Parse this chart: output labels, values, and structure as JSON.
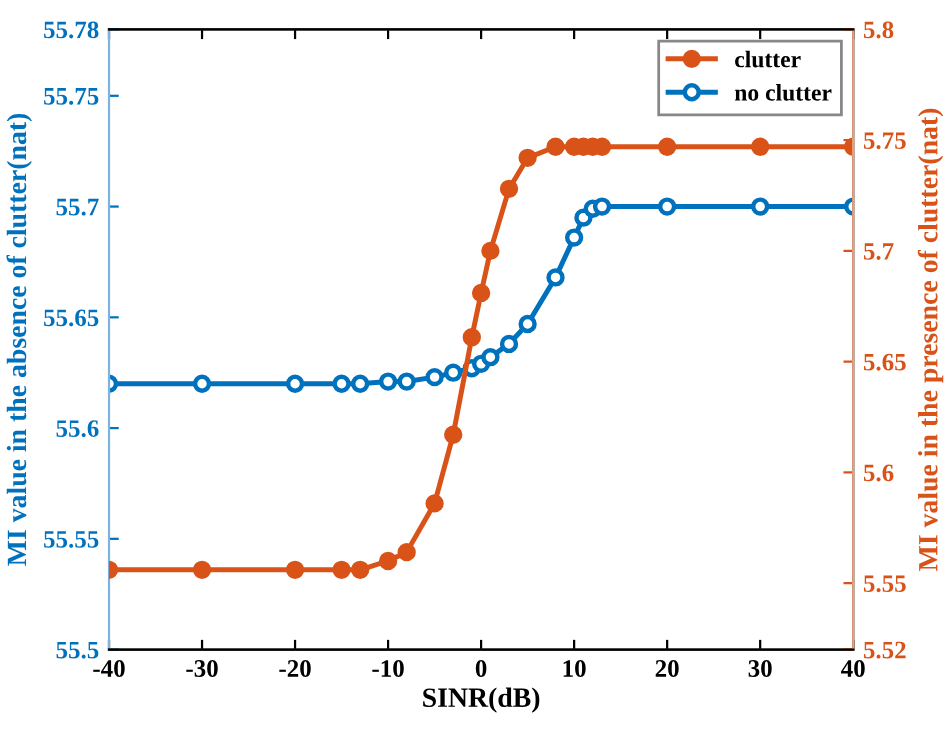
{
  "chart_data": {
    "type": "line",
    "xlabel": "SINR(dB)",
    "ylabel": "MI value in the absence of clutter(nat)",
    "y2label": "MI value in the presence of clutter(nat)",
    "x": [
      -40,
      -30,
      -20,
      -15,
      -13,
      -10,
      -8,
      -5,
      -3,
      -1,
      0,
      1,
      3,
      5,
      8,
      10,
      11,
      12,
      13,
      20,
      30,
      40
    ],
    "series": [
      {
        "name": "clutter",
        "color": "#d95319",
        "axis": "y2",
        "marker": "circle",
        "values": [
          5.556,
          5.556,
          5.556,
          5.556,
          5.556,
          5.56,
          5.564,
          5.586,
          5.617,
          5.661,
          5.681,
          5.7,
          5.728,
          5.742,
          5.747,
          5.747,
          5.747,
          5.747,
          5.747,
          5.747,
          5.747,
          5.747
        ]
      },
      {
        "name": "no clutter",
        "color": "#0072bd",
        "axis": "y",
        "marker": "circle",
        "values": [
          55.62,
          55.62,
          55.62,
          55.62,
          55.62,
          55.621,
          55.621,
          55.623,
          55.625,
          55.627,
          55.629,
          55.632,
          55.638,
          55.647,
          55.668,
          55.686,
          55.695,
          55.699,
          55.7,
          55.7,
          55.7,
          55.7
        ]
      }
    ],
    "xlim": [
      -40,
      40
    ],
    "xticks": [
      -40,
      -30,
      -20,
      -10,
      0,
      10,
      20,
      30,
      40
    ],
    "ylim": [
      55.5,
      55.78
    ],
    "yticks": [
      55.5,
      55.55,
      55.6,
      55.65,
      55.7,
      55.75,
      55.78
    ],
    "y2lim": [
      5.52,
      5.8
    ],
    "y2ticks": [
      5.52,
      5.55,
      5.6,
      5.65,
      5.7,
      5.75,
      5.8
    ],
    "legend": "top right",
    "line_style": "solid",
    "grid": false
  }
}
